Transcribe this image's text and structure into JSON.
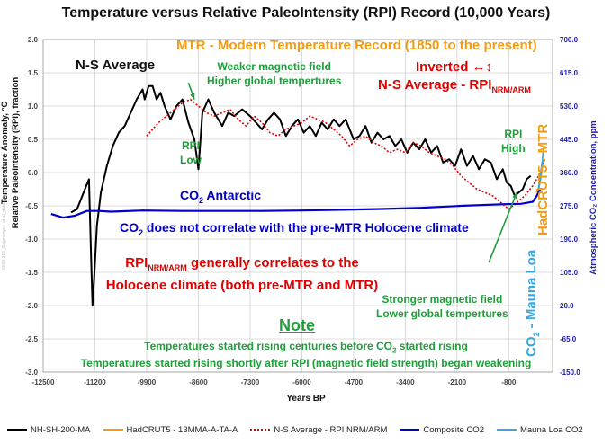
{
  "chart_data": {
    "type": "line",
    "title": "Temperature versus Relative PaleoIntensity (RPI) Record (10,000 Years)",
    "xlabel": "Years BP",
    "ylabel_line1": "Temperature Anomaly, °C",
    "ylabel_line2": "Relative PaleoIntensity (RPI), fraction",
    "y2label": "Atmospheric CO₂ Concentration, ppm",
    "xlim": [
      -12500,
      300
    ],
    "ylim": [
      -3.0,
      2.0
    ],
    "y2lim": [
      -150,
      700
    ],
    "x_ticks": [
      "-12500",
      "-11200",
      "-9900",
      "-8600",
      "-7300",
      "-6000",
      "-4700",
      "-3400",
      "-2100",
      "-800"
    ],
    "x_tick_values": [
      -12500,
      -11200,
      -9900,
      -8600,
      -7300,
      -6000,
      -4700,
      -3400,
      -2100,
      -800
    ],
    "y_ticks": [
      "2.0",
      "1.5",
      "1.0",
      "0.5",
      "0.0",
      "-0.5",
      "-1.0",
      "-1.5",
      "-2.0",
      "-2.5",
      "-3.0"
    ],
    "y_tick_values": [
      2.0,
      1.5,
      1.0,
      0.5,
      0.0,
      -0.5,
      -1.0,
      -1.5,
      -2.0,
      -2.5,
      -3.0
    ],
    "y2_ticks": [
      "700.0",
      "615.0",
      "530.0",
      "445.0",
      "360.0",
      "275.0",
      "190.0",
      "105.0",
      "20.0",
      "-65.0",
      "-150.0"
    ],
    "y2_tick_values": [
      700,
      615,
      530,
      445,
      360,
      275,
      190,
      105,
      20,
      -65,
      -150
    ],
    "grid": true,
    "series": [
      {
        "name": "NH-SH-200-MA",
        "color": "#000000",
        "axis": "left",
        "x": [
          -11800,
          -11650,
          -11550,
          -11450,
          -11350,
          -11300,
          -11260,
          -11220,
          -11150,
          -11050,
          -10900,
          -10750,
          -10600,
          -10450,
          -10300,
          -10150,
          -10000,
          -9950,
          -9850,
          -9750,
          -9650,
          -9550,
          -9450,
          -9300,
          -9150,
          -9000,
          -8850,
          -8700,
          -8600,
          -8500,
          -8350,
          -8200,
          -8000,
          -7850,
          -7700,
          -7500,
          -7300,
          -7150,
          -7000,
          -6850,
          -6700,
          -6550,
          -6400,
          -6250,
          -6100,
          -5950,
          -5800,
          -5650,
          -5500,
          -5350,
          -5200,
          -5050,
          -4900,
          -4800,
          -4700,
          -4550,
          -4400,
          -4250,
          -4100,
          -3950,
          -3800,
          -3650,
          -3500,
          -3350,
          -3200,
          -3050,
          -2900,
          -2750,
          -2600,
          -2450,
          -2300,
          -2150,
          -2000,
          -1850,
          -1700,
          -1550,
          -1400,
          -1250,
          -1100,
          -950,
          -850,
          -750,
          -650,
          -550,
          -450,
          -350,
          -250
        ],
        "values": [
          -0.6,
          -0.55,
          -0.4,
          -0.25,
          -0.1,
          -1.2,
          -2.0,
          -1.6,
          -0.8,
          -0.3,
          0.1,
          0.4,
          0.6,
          0.7,
          0.9,
          1.1,
          1.25,
          1.1,
          1.3,
          1.3,
          1.1,
          1.2,
          1.0,
          0.8,
          1.0,
          1.1,
          0.75,
          0.5,
          0.05,
          0.9,
          1.1,
          0.9,
          0.7,
          0.9,
          0.85,
          0.95,
          0.85,
          0.75,
          0.65,
          0.8,
          0.9,
          0.8,
          0.55,
          0.7,
          0.8,
          0.6,
          0.7,
          0.55,
          0.75,
          0.65,
          0.8,
          0.7,
          0.8,
          0.65,
          0.5,
          0.55,
          0.7,
          0.45,
          0.6,
          0.5,
          0.55,
          0.4,
          0.5,
          0.3,
          0.45,
          0.35,
          0.5,
          0.3,
          0.4,
          0.15,
          0.2,
          0.1,
          0.35,
          0.1,
          0.25,
          0.05,
          0.2,
          0.15,
          -0.1,
          0.05,
          -0.15,
          -0.2,
          -0.35,
          -0.3,
          -0.25,
          -0.1,
          -0.05
        ]
      },
      {
        "name": "HadCRUT5 - 13MMA-A-TA-A",
        "color": "#f39c12",
        "axis": "left",
        "x": [
          -100,
          -80,
          -60,
          -40,
          -20,
          0,
          20,
          40,
          60,
          80
        ],
        "values": [
          -0.3,
          -0.25,
          -0.28,
          -0.2,
          -0.15,
          -0.1,
          0.0,
          0.1,
          0.25,
          0.4
        ]
      },
      {
        "name": "N-S Average - RPI NRM/ARM",
        "color": "#e00000",
        "axis": "left",
        "x": [
          -9900,
          -9750,
          -9600,
          -9400,
          -9200,
          -9000,
          -8800,
          -8600,
          -8400,
          -8200,
          -8000,
          -7800,
          -7600,
          -7400,
          -7200,
          -7000,
          -6800,
          -6600,
          -6400,
          -6200,
          -6000,
          -5800,
          -5600,
          -5400,
          -5200,
          -5000,
          -4800,
          -4600,
          -4400,
          -4200,
          -4000,
          -3800,
          -3600,
          -3400,
          -3200,
          -3000,
          -2800,
          -2600,
          -2400,
          -2200,
          -2000,
          -1800,
          -1600,
          -1400,
          -1200,
          -1000,
          -800,
          -600,
          -400,
          -200,
          0,
          100
        ],
        "values": [
          0.55,
          0.65,
          0.75,
          0.85,
          0.95,
          1.05,
          1.1,
          1.0,
          0.9,
          0.85,
          0.9,
          0.95,
          0.8,
          0.7,
          0.85,
          0.75,
          0.6,
          0.55,
          0.65,
          0.7,
          0.75,
          0.85,
          0.8,
          0.75,
          0.65,
          0.55,
          0.4,
          0.5,
          0.55,
          0.45,
          0.4,
          0.3,
          0.35,
          0.3,
          0.45,
          0.4,
          0.3,
          0.25,
          0.2,
          0.1,
          -0.05,
          -0.15,
          -0.25,
          -0.3,
          -0.35,
          -0.45,
          -0.55,
          -0.45,
          -0.35,
          -0.2,
          0.0,
          0.2
        ]
      },
      {
        "name": "Composite CO2",
        "color": "#0000cc",
        "axis": "right",
        "x": [
          -12300,
          -12000,
          -11700,
          -11400,
          -11100,
          -10800,
          -10000,
          -9000,
          -8000,
          -7000,
          -6000,
          -5000,
          -4000,
          -3000,
          -2000,
          -1000,
          -500,
          -200,
          -100,
          0
        ],
        "values": [
          254,
          245,
          250,
          262,
          262,
          260,
          263,
          262,
          262,
          262,
          263,
          265,
          267,
          270,
          275,
          279,
          280,
          285,
          300,
          320
        ]
      },
      {
        "name": "Mauna Loa CO2",
        "color": "#39a7e0",
        "axis": "right",
        "x": [
          -60,
          -40,
          -20,
          0,
          20,
          40,
          60,
          70
        ],
        "values": [
          316,
          325,
          340,
          355,
          370,
          385,
          400,
          415
        ]
      }
    ],
    "annotations": {
      "mtr_title": "MTR - Modern Temperature Record (1850 to the present)",
      "ns_average": "N-S Average",
      "inverted": "Inverted ↔↕",
      "ns_rpi_main": "N-S Average - RPI",
      "ns_rpi_sub": "NRM/ARM",
      "weaker_field_1": "Weaker magnetic field",
      "weaker_field_2": "Higher global tempertures",
      "rpi_low_1": "RPI",
      "rpi_low_2": "Low",
      "rpi_high_1": "RPI",
      "rpi_high_2": "High",
      "co2_antarctic_pre": "CO",
      "co2_antarctic_sub": "2",
      "co2_antarctic_post": " Antarctic",
      "co2_no_corr_pre": "CO",
      "co2_no_corr_sub": "2",
      "co2_no_corr_post": " does not correlate with the pre-MTR Holocene climate",
      "rpi_corr_pre": "RPI",
      "rpi_corr_sub": "NRM/ARM",
      "rpi_corr_post": " generally correlates to the",
      "rpi_corr_line2": "Holocene climate (both pre-MTR and MTR)",
      "stronger_field_1": "Stronger magnetic field",
      "stronger_field_2": "Lower global tempertures",
      "hadcrut_vertical": "HadCRUT5 - MTR",
      "mauna_loa_pre": "CO",
      "mauna_loa_sub": "2",
      "mauna_loa_post": " - Mauna Loa",
      "note_title": "Note",
      "note_line1_pre": "Temperatures started rising centuries before CO",
      "note_line1_sub": "2",
      "note_line1_post": " started rising",
      "note_line2": "Temperatures started rising shortly after RPI (magnetic field strength) began weakening",
      "watermark": "2023-106_Segmenyev-et-al_data.xlsx"
    },
    "colors": {
      "green": "#1f9e3a",
      "orange": "#f39c12",
      "red": "#e00000",
      "blue": "#0000cc",
      "lightblue": "#39a7e0",
      "right_axis": "#1a1ab0"
    }
  }
}
